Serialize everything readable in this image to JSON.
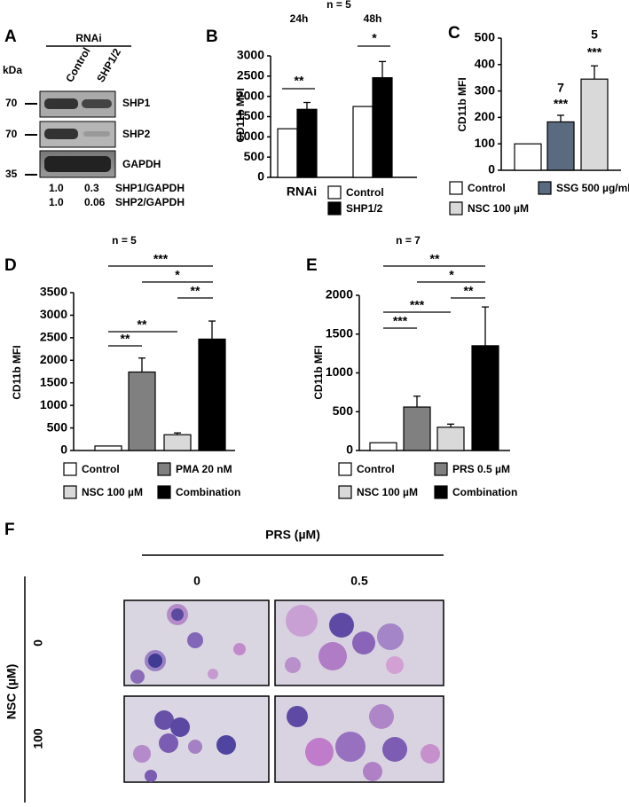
{
  "panel_a": {
    "label": "A",
    "group": "RNAi",
    "unit": "kDa",
    "lanes": [
      "Control",
      "SHP1/2"
    ],
    "markers": [
      "70",
      "70",
      "35"
    ],
    "bands": [
      "SHP1",
      "SHP2",
      "GAPDH"
    ],
    "ratios": [
      [
        "1.0",
        "0.3",
        "SHP1/GAPDH"
      ],
      [
        "1.0",
        "0.06",
        "SHP2/GAPDH"
      ]
    ]
  },
  "chart_data": [
    {
      "type": "bar",
      "panel": "B",
      "title": "n = 5",
      "categories": [
        "24h",
        "48h"
      ],
      "y_label": "CD11b MFI",
      "x_label": "RNAi",
      "series": [
        {
          "name": "Control",
          "color": "#ffffff",
          "values": [
            1200,
            1750
          ]
        },
        {
          "name": "SHP1/2",
          "color": "#000000",
          "values": [
            1680,
            2460
          ],
          "errors": [
            170,
            400
          ]
        }
      ],
      "ylim": [
        0,
        3000
      ],
      "yticks": [
        0,
        500,
        1000,
        1500,
        2000,
        2500,
        3000
      ],
      "annotations": [
        "**",
        "*"
      ]
    },
    {
      "type": "bar",
      "panel": "C",
      "y_label": "CD11b MFI",
      "series": [
        {
          "name": "Control",
          "color": "#ffffff",
          "values": [
            100
          ]
        },
        {
          "name": "SSG 500 µg/ml",
          "color": "#5a6b80",
          "values": [
            183
          ],
          "errors": [
            25
          ]
        },
        {
          "name": "NSC 100 µM",
          "color": "#d9d9d9",
          "values": [
            345
          ],
          "errors": [
            50
          ]
        }
      ],
      "ylim": [
        0,
        500
      ],
      "yticks": [
        0,
        100,
        200,
        300,
        400,
        500
      ],
      "annotations": [
        "7",
        "***",
        "5",
        "***"
      ]
    },
    {
      "type": "bar",
      "panel": "D",
      "title": "n = 5",
      "y_label": "CD11b MFI",
      "series": [
        {
          "name": "Control",
          "color": "#ffffff",
          "values": [
            100
          ]
        },
        {
          "name": "PMA 20 nM",
          "color": "#808080",
          "values": [
            1740
          ],
          "errors": [
            310
          ]
        },
        {
          "name": "NSC 100 µM",
          "color": "#d9d9d9",
          "values": [
            350
          ],
          "errors": [
            40
          ]
        },
        {
          "name": "Combination",
          "color": "#000000",
          "values": [
            2470
          ],
          "errors": [
            400
          ]
        }
      ],
      "ylim": [
        0,
        3500
      ],
      "yticks": [
        0,
        500,
        1000,
        1500,
        2000,
        2500,
        3000,
        3500
      ],
      "annotations": [
        "***",
        "*",
        "**",
        "**",
        "**"
      ]
    },
    {
      "type": "bar",
      "panel": "E",
      "title": "n = 7",
      "y_label": "CD11b MFI",
      "series": [
        {
          "name": "Control",
          "color": "#ffffff",
          "values": [
            100
          ]
        },
        {
          "name": "PRS 0.5 µM",
          "color": "#808080",
          "values": [
            560
          ],
          "errors": [
            140
          ]
        },
        {
          "name": "NSC 100 µM",
          "color": "#d9d9d9",
          "values": [
            300
          ],
          "errors": [
            40
          ]
        },
        {
          "name": "Combination",
          "color": "#000000",
          "values": [
            1350
          ],
          "errors": [
            500
          ]
        }
      ],
      "ylim": [
        0,
        2000
      ],
      "yticks": [
        0,
        500,
        1000,
        1500,
        2000
      ],
      "annotations": [
        "**",
        "*",
        "**",
        "***",
        "***"
      ]
    }
  ],
  "panel_f": {
    "label": "F",
    "column_title": "PRS (µM)",
    "columns": [
      "0",
      "0.5"
    ],
    "row_title": "NSC (µM)",
    "rows": [
      "0",
      "100"
    ]
  }
}
